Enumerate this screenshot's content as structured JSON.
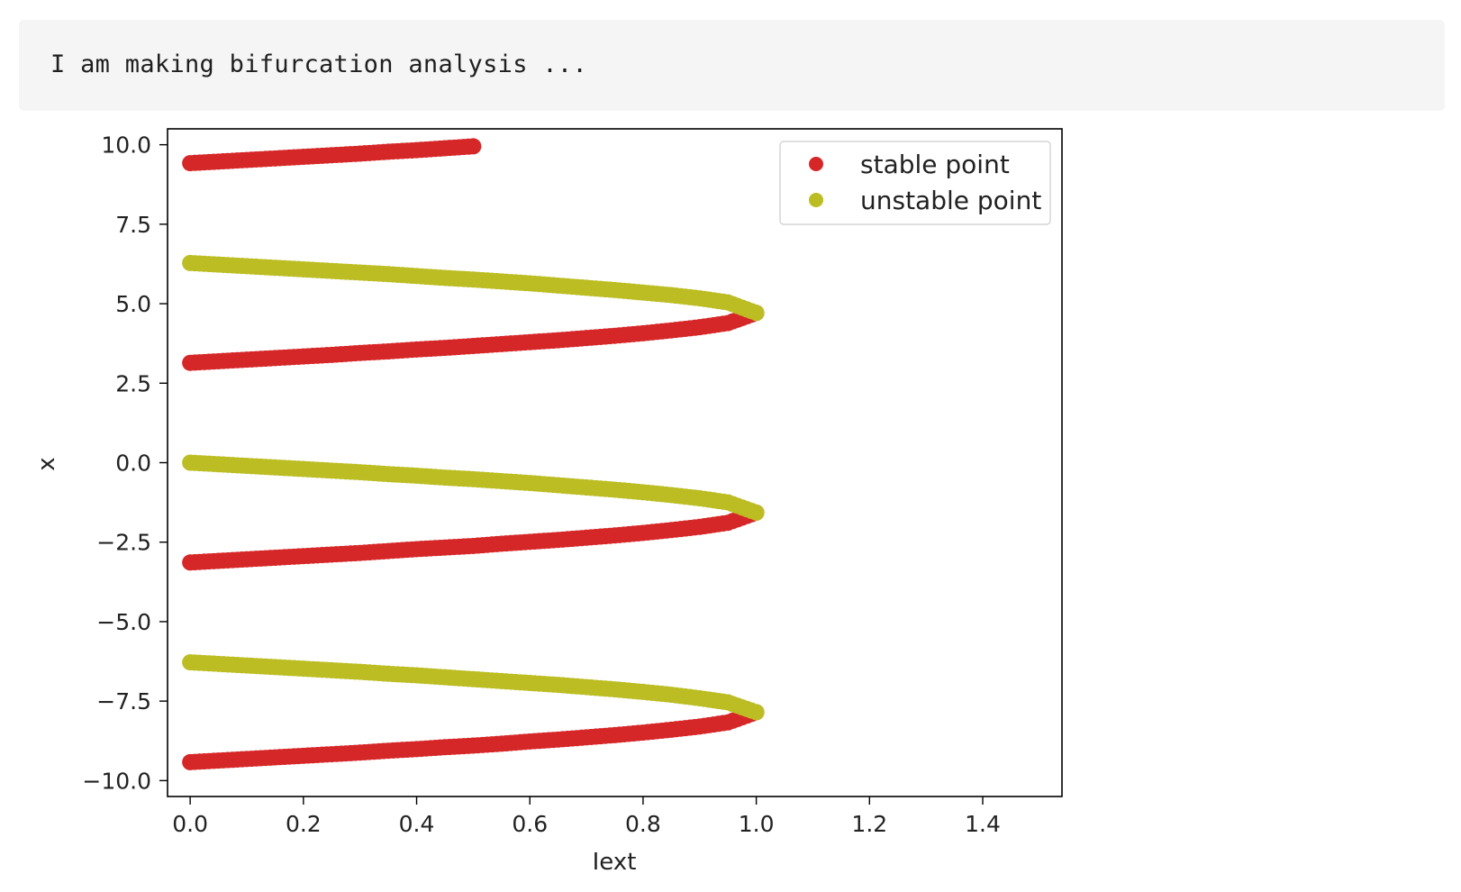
{
  "output": {
    "text": "I am making bifurcation analysis ..."
  },
  "chart_data": {
    "type": "scatter",
    "title": "",
    "xlabel": "Iext",
    "ylabel": "x",
    "xlim": [
      -0.04,
      1.54
    ],
    "ylim": [
      -10.5,
      10.5
    ],
    "xticks": [
      0.0,
      0.2,
      0.4,
      0.6,
      0.8,
      1.0,
      1.2,
      1.4
    ],
    "xtick_labels": [
      "0.0",
      "0.2",
      "0.4",
      "0.6",
      "0.8",
      "1.0",
      "1.2",
      "1.4"
    ],
    "yticks": [
      10.0,
      7.5,
      5.0,
      2.5,
      0.0,
      -2.5,
      -5.0,
      -7.5,
      -10.0
    ],
    "ytick_labels": [
      "10.0",
      "7.5",
      "5.0",
      "2.5",
      "0.0",
      "−2.5",
      "−5.0",
      "−7.5",
      "−10.0"
    ],
    "grid": false,
    "legend_position": "top-right",
    "series": [
      {
        "name": "stable point",
        "color": "#d62728",
        "x": [
          0.0,
          0.05,
          0.1,
          0.15,
          0.2,
          0.25,
          0.3,
          0.35,
          0.4,
          0.45,
          0.5,
          0.55,
          0.6,
          0.65,
          0.7,
          0.75,
          0.8,
          0.85,
          0.9,
          0.95,
          1.0,
          0.0,
          0.05,
          0.1,
          0.15,
          0.2,
          0.25,
          0.3,
          0.35,
          0.4,
          0.45,
          0.5,
          0.55,
          0.6,
          0.65,
          0.7,
          0.75,
          0.8,
          0.85,
          0.9,
          0.95,
          1.0,
          0.0,
          0.05,
          0.1,
          0.15,
          0.2,
          0.25,
          0.3,
          0.35,
          0.4,
          0.45,
          0.5,
          0.55,
          0.6,
          0.65,
          0.7,
          0.75,
          0.8,
          0.85,
          0.9,
          0.95,
          1.0,
          0.0,
          0.05,
          0.1,
          0.15,
          0.2,
          0.25,
          0.3,
          0.35,
          0.4,
          0.45,
          0.5
        ],
        "y": [
          3.14,
          3.19,
          3.24,
          3.29,
          3.34,
          3.39,
          3.45,
          3.5,
          3.56,
          3.61,
          3.67,
          3.73,
          3.79,
          3.85,
          3.92,
          3.99,
          4.07,
          4.16,
          4.26,
          4.39,
          4.71,
          -3.14,
          -3.09,
          -3.04,
          -2.99,
          -2.94,
          -2.89,
          -2.84,
          -2.78,
          -2.72,
          -2.67,
          -2.62,
          -2.55,
          -2.49,
          -2.43,
          -2.36,
          -2.29,
          -2.21,
          -2.12,
          -2.02,
          -1.89,
          -1.57,
          -9.42,
          -9.37,
          -9.32,
          -9.27,
          -9.22,
          -9.17,
          -9.12,
          -9.06,
          -9.01,
          -8.95,
          -8.9,
          -8.84,
          -8.77,
          -8.71,
          -8.64,
          -8.57,
          -8.49,
          -8.4,
          -8.3,
          -8.17,
          -7.85,
          9.42,
          9.47,
          9.52,
          9.57,
          9.62,
          9.67,
          9.72,
          9.78,
          9.83,
          9.89,
          9.95
        ]
      },
      {
        "name": "unstable point",
        "color": "#bcbd22",
        "x": [
          0.0,
          0.05,
          0.1,
          0.15,
          0.2,
          0.25,
          0.3,
          0.35,
          0.4,
          0.45,
          0.5,
          0.55,
          0.6,
          0.65,
          0.7,
          0.75,
          0.8,
          0.85,
          0.9,
          0.95,
          1.0,
          0.0,
          0.05,
          0.1,
          0.15,
          0.2,
          0.25,
          0.3,
          0.35,
          0.4,
          0.45,
          0.5,
          0.55,
          0.6,
          0.65,
          0.7,
          0.75,
          0.8,
          0.85,
          0.9,
          0.95,
          1.0,
          0.0,
          0.05,
          0.1,
          0.15,
          0.2,
          0.25,
          0.3,
          0.35,
          0.4,
          0.45,
          0.5,
          0.55,
          0.6,
          0.65,
          0.7,
          0.75,
          0.8,
          0.85,
          0.9,
          0.95,
          1.0
        ],
        "y": [
          6.28,
          6.23,
          6.18,
          6.13,
          6.08,
          6.03,
          5.98,
          5.93,
          5.87,
          5.81,
          5.76,
          5.7,
          5.64,
          5.57,
          5.5,
          5.43,
          5.35,
          5.27,
          5.17,
          5.04,
          4.71,
          0.0,
          -0.05,
          -0.1,
          -0.15,
          -0.2,
          -0.25,
          -0.3,
          -0.36,
          -0.41,
          -0.47,
          -0.52,
          -0.58,
          -0.64,
          -0.71,
          -0.78,
          -0.85,
          -0.93,
          -1.02,
          -1.12,
          -1.25,
          -1.57,
          -6.28,
          -6.33,
          -6.38,
          -6.43,
          -6.48,
          -6.53,
          -6.58,
          -6.64,
          -6.69,
          -6.75,
          -6.81,
          -6.87,
          -6.93,
          -6.99,
          -7.06,
          -7.13,
          -7.21,
          -7.3,
          -7.41,
          -7.54,
          -7.85
        ]
      }
    ]
  }
}
